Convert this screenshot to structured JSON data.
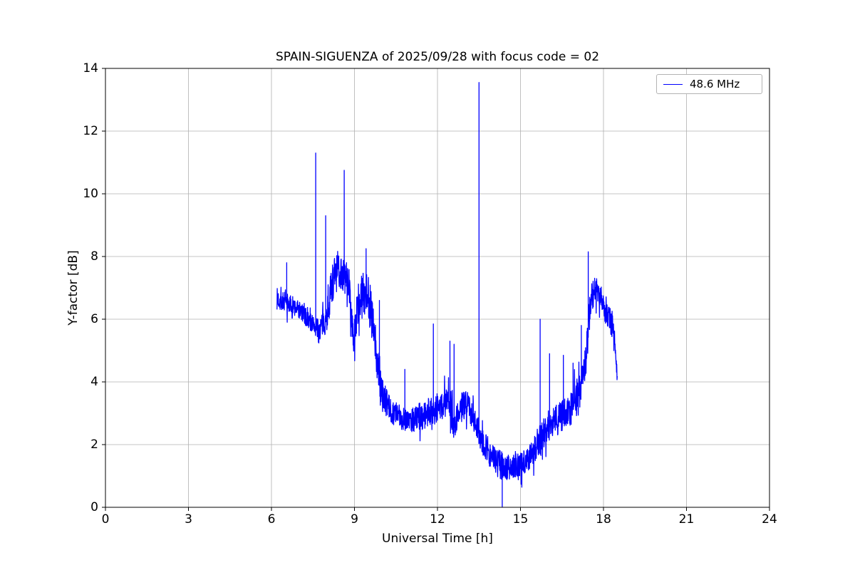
{
  "chart_data": {
    "type": "line",
    "title": "SPAIN-SIGUENZA of 2025/09/28 with focus code = 02",
    "xlabel": "Universal Time [h]",
    "ylabel": "Y-factor [dB]",
    "xlim": [
      0,
      24
    ],
    "ylim": [
      0,
      14
    ],
    "xticks": [
      0,
      3,
      6,
      9,
      12,
      15,
      18,
      21,
      24
    ],
    "yticks": [
      0,
      2,
      4,
      6,
      8,
      10,
      12,
      14
    ],
    "grid": true,
    "line_color": "#0000ff",
    "grid_color": "#b0b0b0",
    "spine_color": "#000000",
    "legend": {
      "position": "upper right",
      "entries": [
        {
          "label": "48.6 MHz",
          "color": "#0000ff"
        }
      ]
    },
    "series": [
      {
        "name": "48.6 MHz",
        "x_start": 6.2,
        "x_end": 18.5,
        "sample_step_h": 0.008,
        "trend": [
          [
            6.2,
            6.65
          ],
          [
            6.6,
            6.5
          ],
          [
            7.0,
            6.3
          ],
          [
            7.3,
            6.0
          ],
          [
            7.5,
            5.85
          ],
          [
            7.7,
            5.6
          ],
          [
            8.0,
            6.1
          ],
          [
            8.2,
            7.2
          ],
          [
            8.45,
            7.6
          ],
          [
            8.6,
            7.4
          ],
          [
            8.8,
            7.2
          ],
          [
            8.95,
            5.2
          ],
          [
            9.1,
            6.3
          ],
          [
            9.3,
            6.8
          ],
          [
            9.45,
            7.0
          ],
          [
            9.6,
            6.2
          ],
          [
            9.8,
            4.8
          ],
          [
            10.0,
            3.6
          ],
          [
            10.3,
            3.1
          ],
          [
            10.6,
            2.9
          ],
          [
            11.0,
            2.8
          ],
          [
            11.4,
            2.9
          ],
          [
            11.8,
            3.1
          ],
          [
            12.1,
            3.2
          ],
          [
            12.4,
            3.4
          ],
          [
            12.6,
            2.6
          ],
          [
            12.8,
            3.2
          ],
          [
            13.1,
            3.3
          ],
          [
            13.35,
            2.7
          ],
          [
            13.6,
            2.2
          ],
          [
            13.9,
            1.7
          ],
          [
            14.2,
            1.4
          ],
          [
            14.5,
            1.25
          ],
          [
            14.8,
            1.3
          ],
          [
            15.1,
            1.4
          ],
          [
            15.4,
            1.7
          ],
          [
            15.7,
            2.2
          ],
          [
            16.0,
            2.6
          ],
          [
            16.4,
            2.9
          ],
          [
            16.8,
            3.1
          ],
          [
            17.1,
            3.6
          ],
          [
            17.35,
            4.6
          ],
          [
            17.55,
            6.7
          ],
          [
            17.75,
            7.0
          ],
          [
            17.95,
            6.6
          ],
          [
            18.1,
            6.1
          ],
          [
            18.3,
            5.9
          ],
          [
            18.42,
            5.3
          ],
          [
            18.5,
            4.1
          ]
        ],
        "noise_amp": [
          [
            6.2,
            0.35
          ],
          [
            7.0,
            0.3
          ],
          [
            7.5,
            0.3
          ],
          [
            8.0,
            0.5
          ],
          [
            8.3,
            0.7
          ],
          [
            8.6,
            0.6
          ],
          [
            9.0,
            0.5
          ],
          [
            9.4,
            0.8
          ],
          [
            9.8,
            0.8
          ],
          [
            10.2,
            0.4
          ],
          [
            10.8,
            0.4
          ],
          [
            11.5,
            0.45
          ],
          [
            12.2,
            0.5
          ],
          [
            12.8,
            0.45
          ],
          [
            13.4,
            0.4
          ],
          [
            13.8,
            0.5
          ],
          [
            14.3,
            0.45
          ],
          [
            14.8,
            0.4
          ],
          [
            15.3,
            0.4
          ],
          [
            15.8,
            0.5
          ],
          [
            16.3,
            0.55
          ],
          [
            16.8,
            0.5
          ],
          [
            17.2,
            0.7
          ],
          [
            17.6,
            0.45
          ],
          [
            18.0,
            0.35
          ],
          [
            18.3,
            0.45
          ],
          [
            18.5,
            0.25
          ]
        ],
        "spikes": [
          [
            6.55,
            7.8
          ],
          [
            7.6,
            11.3
          ],
          [
            7.96,
            9.3
          ],
          [
            8.63,
            10.75
          ],
          [
            9.42,
            8.25
          ],
          [
            9.9,
            6.6
          ],
          [
            10.82,
            4.4
          ],
          [
            11.85,
            5.85
          ],
          [
            12.45,
            5.3
          ],
          [
            12.6,
            5.2
          ],
          [
            13.5,
            13.55
          ],
          [
            14.34,
            0.02
          ],
          [
            15.71,
            6.0
          ],
          [
            16.05,
            4.9
          ],
          [
            16.55,
            4.85
          ],
          [
            16.9,
            4.6
          ],
          [
            17.2,
            5.8
          ],
          [
            17.45,
            8.15
          ]
        ]
      }
    ]
  }
}
